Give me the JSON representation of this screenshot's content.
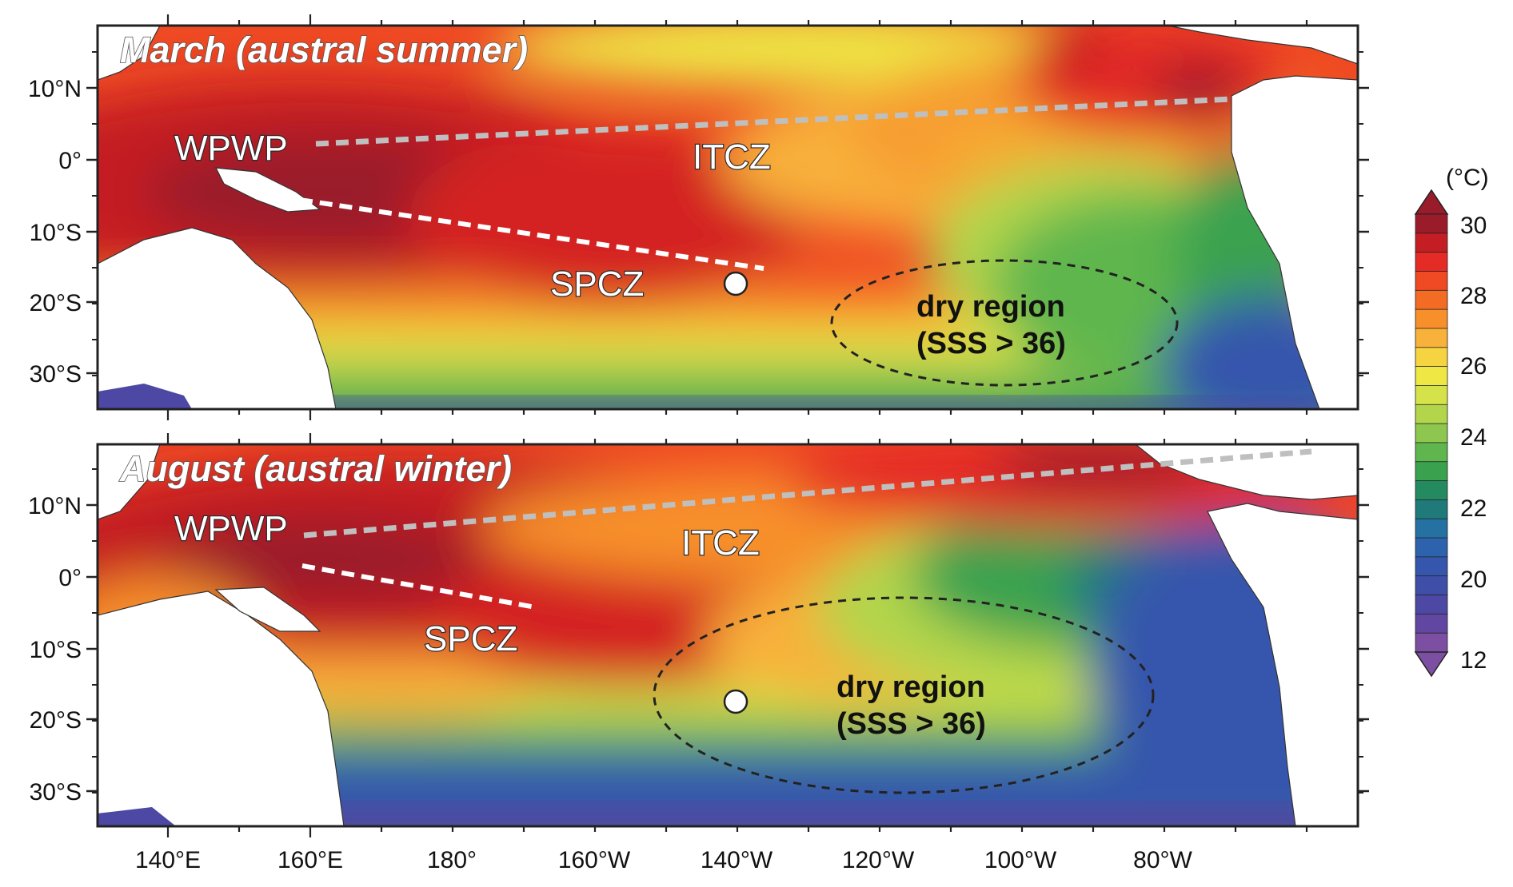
{
  "panels": [
    {
      "title": "March (austral summer)",
      "labels": {
        "wpwp": "WPWP",
        "itcz": "ITCZ",
        "spcz": "SPCZ",
        "dry_line1": "dry region",
        "dry_line2": "(SSS > 36)"
      }
    },
    {
      "title": "August (austral winter)",
      "labels": {
        "wpwp": "WPWP",
        "itcz": "ITCZ",
        "spcz": "SPCZ",
        "dry_line1": "dry region",
        "dry_line2": "(SSS > 36)"
      }
    }
  ],
  "lat_ticks": [
    "10°N",
    "0°",
    "10°S",
    "20°S",
    "30°S"
  ],
  "lon_ticks": [
    "140°E",
    "160°E",
    "180°",
    "160°W",
    "140°W",
    "120°W",
    "100°W",
    "80°W"
  ],
  "colorbar": {
    "unit": "(°C)",
    "tick_labels": [
      "30",
      "28",
      "26",
      "24",
      "22",
      "20",
      "12"
    ],
    "colors": [
      "#9a1c2a",
      "#c41e24",
      "#e42b25",
      "#ef4a23",
      "#f46b24",
      "#f7902a",
      "#f8b13a",
      "#f6d341",
      "#eee744",
      "#d6e24a",
      "#b2d54b",
      "#8dc74f",
      "#5fb64e",
      "#3aa24f",
      "#238b5f",
      "#207a7a",
      "#2471a2",
      "#2d62ad",
      "#3556ac",
      "#3f4ea7",
      "#4c48a3",
      "#6147a1",
      "#7c4fa2"
    ]
  },
  "colors": {
    "land": "#ffffff",
    "frame": "#222222",
    "itcz_line": "#bfbfbf",
    "spcz_line": "#ffffff",
    "dry_ellipse": "#222222",
    "station_marker": "#ffffff"
  }
}
